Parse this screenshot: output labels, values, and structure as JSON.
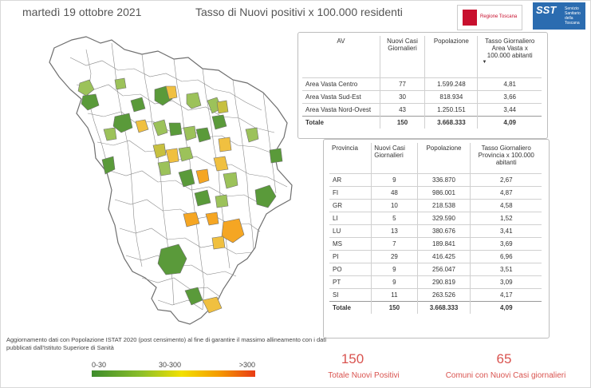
{
  "header": {
    "date": "martedì 19 ottobre 2021",
    "title": "Tasso di Nuovi positivi x 100.000 residenti",
    "logo_regione_text": "Regione Toscana",
    "logo_sst_big": "SST",
    "logo_sst_small": "Servizio Sanitario della Toscana"
  },
  "colors": {
    "green": "#5a9a3a",
    "light_green": "#9cc25a",
    "orange": "#f5a623",
    "map_stroke": "#777777"
  },
  "av_table": {
    "headers": [
      "AV",
      "Nuovi Casi Giornalieri",
      "Popolazione",
      "Tasso Giornaliero Area Vasta x 100.000 abitanti"
    ],
    "rows": [
      [
        "Area Vasta Centro",
        "77",
        "1.599.248",
        "4,81"
      ],
      [
        "Area Vasta Sud-Est",
        "30",
        "818.934",
        "3,66"
      ],
      [
        "Area Vasta Nord-Ovest",
        "43",
        "1.250.151",
        "3,44"
      ]
    ],
    "total": [
      "Totale",
      "150",
      "3.668.333",
      "4,09"
    ]
  },
  "prov_table": {
    "headers": [
      "Provincia",
      "Nuovi Casi Giornalieri",
      "Popolazione",
      "Tasso Giornaliero Provincia x 100.000 abitanti"
    ],
    "rows": [
      [
        "AR",
        "9",
        "336.870",
        "2,67"
      ],
      [
        "FI",
        "48",
        "986.001",
        "4,87"
      ],
      [
        "GR",
        "10",
        "218.538",
        "4,58"
      ],
      [
        "LI",
        "5",
        "329.590",
        "1,52"
      ],
      [
        "LU",
        "13",
        "380.676",
        "3,41"
      ],
      [
        "MS",
        "7",
        "189.841",
        "3,69"
      ],
      [
        "PI",
        "29",
        "416.425",
        "6,96"
      ],
      [
        "PO",
        "9",
        "256.047",
        "3,51"
      ],
      [
        "PT",
        "9",
        "290.819",
        "3,09"
      ],
      [
        "SI",
        "11",
        "263.526",
        "4,17"
      ]
    ],
    "total": [
      "Totale",
      "150",
      "3.668.333",
      "4,09"
    ]
  },
  "note": "Aggiornamento dati con Popolazione ISTAT 2020 (post censimento) al fine di garantire il massimo allineamento con i dati pubblicati dall'Istituto Superiore di Sanità",
  "legend": {
    "low": "0-30",
    "mid": "30-300",
    "high": ">300"
  },
  "kpi": {
    "total_value": "150",
    "total_label": "Totale Nuovi Positivi",
    "comuni_value": "65",
    "comuni_label": "Comuni con Nuovi Casi giornalieri"
  }
}
